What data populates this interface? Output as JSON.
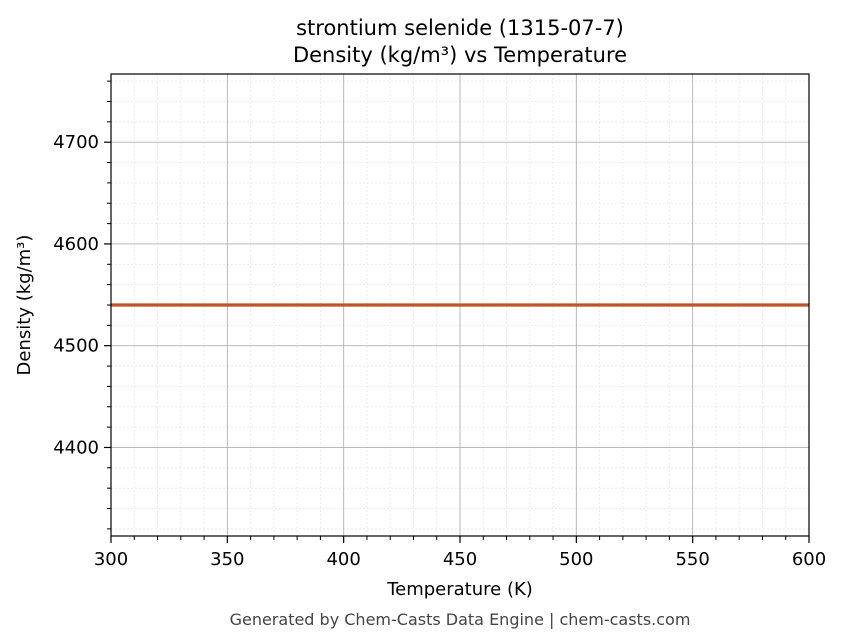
{
  "chart_data": {
    "type": "line",
    "title": "strontium selenide (1315-07-7)",
    "subtitle": "Density (kg/m³) vs Temperature",
    "xlabel": "Temperature (K)",
    "ylabel": "Density (kg/m³)",
    "xlim": [
      300,
      600
    ],
    "ylim": [
      4313,
      4767
    ],
    "x_ticks": [
      300,
      350,
      400,
      450,
      500,
      550,
      600
    ],
    "y_ticks": [
      4400,
      4500,
      4600,
      4700
    ],
    "x_minor_step": 10,
    "y_minor_step": 20,
    "grid": true,
    "series": [
      {
        "color": "#c0522b",
        "x": [
          300,
          350,
          400,
          450,
          500,
          550,
          600
        ],
        "y": [
          4540,
          4540,
          4540,
          4540,
          4540,
          4540,
          4540
        ]
      }
    ]
  },
  "footer": {
    "text": "Generated by Chem-Casts Data Engine | chem-casts.com"
  },
  "colors": {
    "line": "#c0522b",
    "major_grid": "#b0b0b0",
    "minor_grid": "#e6e6e6",
    "footer_text": "#444444"
  }
}
